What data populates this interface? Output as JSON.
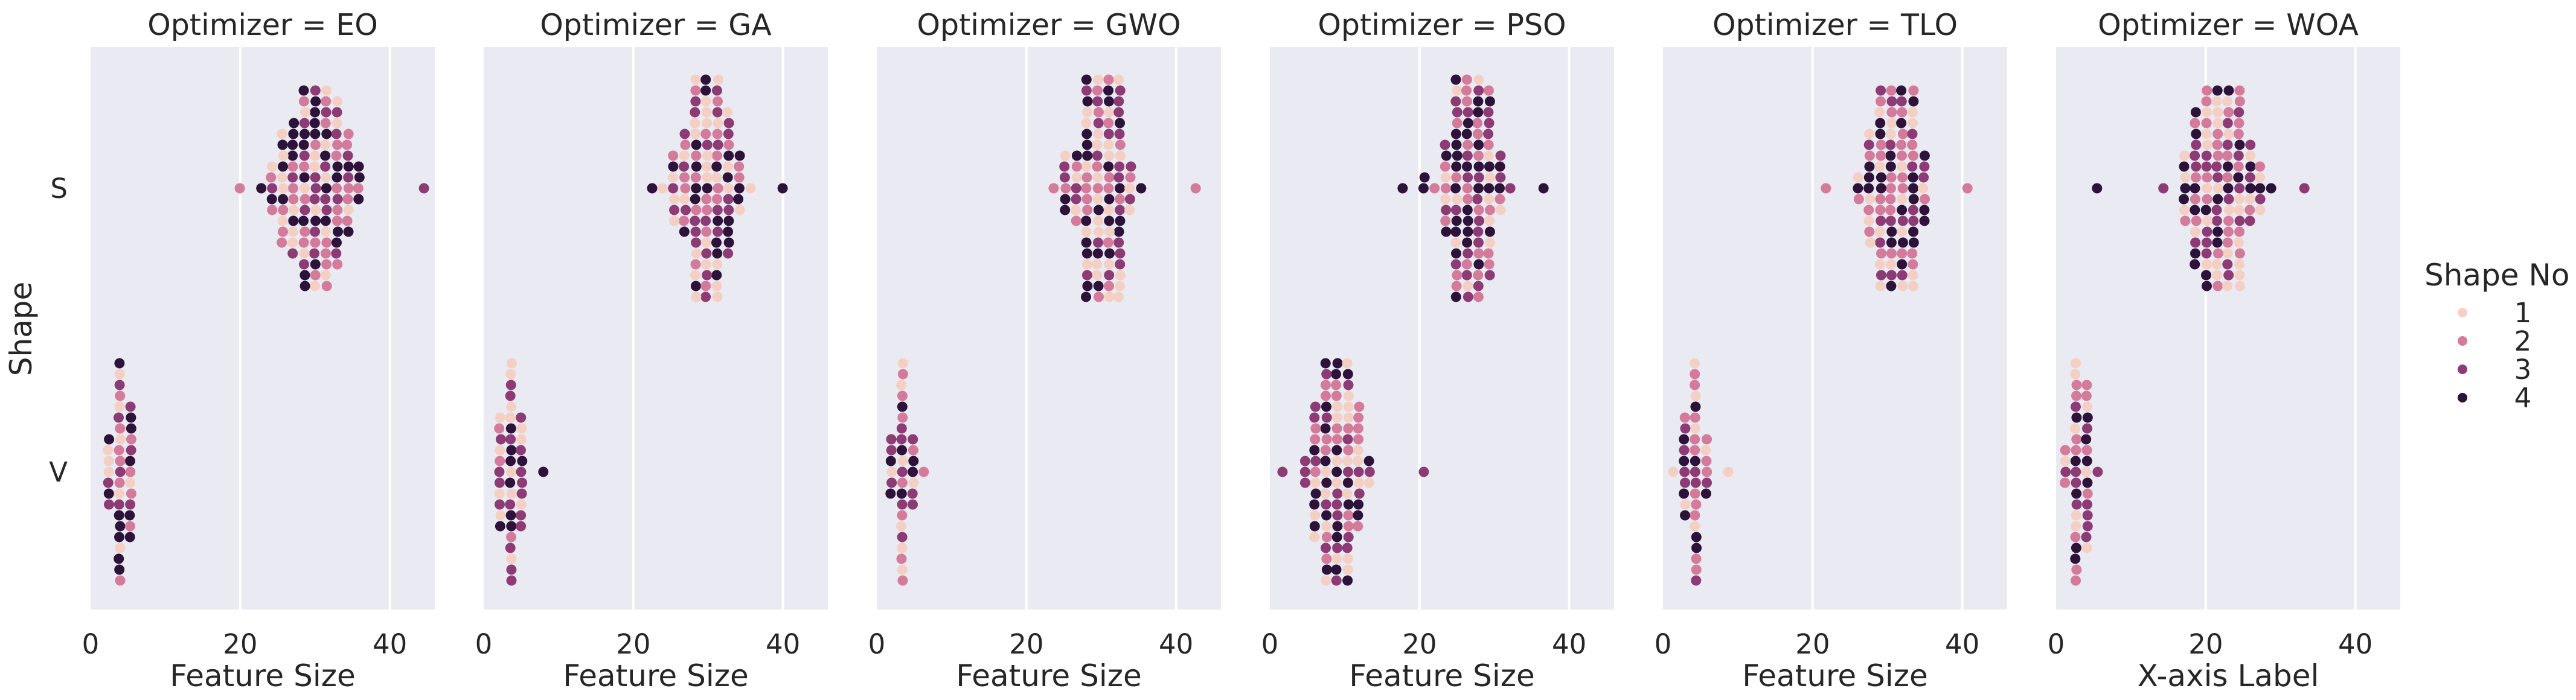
{
  "chart_data": {
    "type": "scatter",
    "subtype": "swarm",
    "facet_variable": "Optimizer",
    "facet_title_template": "Optimizer = {v}",
    "ylabel": "Shape",
    "y_categories": [
      "S",
      "V"
    ],
    "xlim": [
      0,
      46
    ],
    "x_ticks": [
      0,
      20,
      40
    ],
    "legend": {
      "title": "Shape No",
      "placement": "right",
      "entries": [
        {
          "label": "1",
          "color": "#f4d0c4"
        },
        {
          "label": "2",
          "color": "#d47a9a"
        },
        {
          "label": "3",
          "color": "#8d3b74"
        },
        {
          "label": "4",
          "color": "#2d1339"
        }
      ]
    },
    "panels": [
      {
        "optimizer": "EO",
        "xlabel": "Feature Size",
        "series": {
          "S": {
            "min": 20,
            "max": 45,
            "center": 30,
            "spread": 5,
            "count": 150,
            "ybandMax": 0.38
          },
          "V": {
            "min": 2,
            "max": 6,
            "center": 4,
            "spread": 1.2,
            "count": 60,
            "ybandMax": 0.42
          }
        }
      },
      {
        "optimizer": "GA",
        "xlabel": "Feature Size",
        "series": {
          "S": {
            "min": 22,
            "max": 40,
            "center": 30,
            "spread": 4,
            "count": 140,
            "ybandMax": 0.42
          },
          "V": {
            "min": 2,
            "max": 8,
            "center": 3.5,
            "spread": 1.3,
            "count": 60,
            "ybandMax": 0.42
          }
        }
      },
      {
        "optimizer": "GWO",
        "xlabel": "Feature Size",
        "series": {
          "S": {
            "min": 23,
            "max": 42,
            "center": 30,
            "spread": 4,
            "count": 140,
            "ybandMax": 0.42
          },
          "V": {
            "min": 2,
            "max": 6,
            "center": 3.5,
            "spread": 1,
            "count": 60,
            "ybandMax": 0.42
          }
        }
      },
      {
        "optimizer": "PSO",
        "xlabel": "Feature Size",
        "series": {
          "S": {
            "min": 18,
            "max": 36,
            "center": 27,
            "spread": 4,
            "count": 140,
            "ybandMax": 0.42
          },
          "V": {
            "min": 2,
            "max": 21,
            "center": 9,
            "spread": 3.5,
            "count": 150,
            "ybandMax": 0.4
          }
        }
      },
      {
        "optimizer": "TLO",
        "xlabel": "Feature Size",
        "series": {
          "S": {
            "min": 22,
            "max": 40,
            "center": 31,
            "spread": 4,
            "count": 140,
            "ybandMax": 0.38
          },
          "V": {
            "min": 2,
            "max": 9,
            "center": 4,
            "spread": 1.5,
            "count": 60,
            "ybandMax": 0.42
          }
        }
      },
      {
        "optimizer": "WOA",
        "xlabel": "X-axis Label",
        "series": {
          "S": {
            "min": 6,
            "max": 33,
            "center": 22,
            "spread": 5,
            "count": 150,
            "ybandMax": 0.35
          },
          "V": {
            "min": 1,
            "max": 6,
            "center": 3,
            "spread": 1.2,
            "count": 60,
            "ybandMax": 0.42
          }
        }
      }
    ]
  }
}
